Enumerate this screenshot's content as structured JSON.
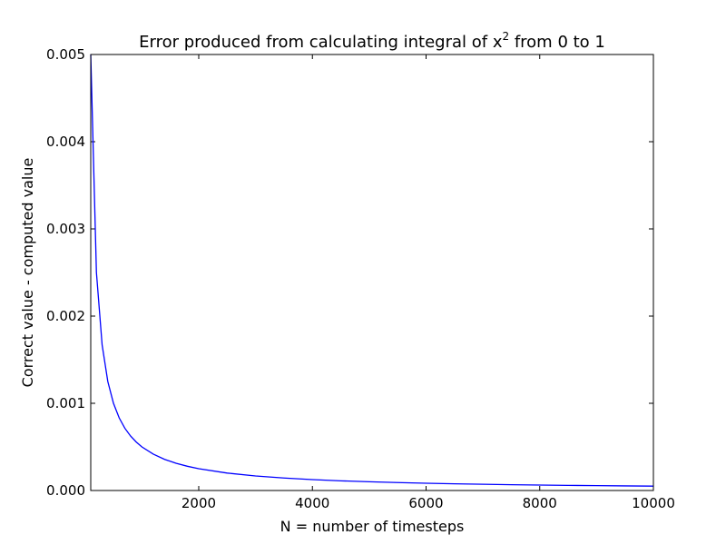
{
  "chart_data": {
    "type": "line",
    "title_text": "Error produced from calculating integral of x",
    "title_superscript": "2",
    "title_suffix": " from 0 to 1",
    "xlabel": "N = number of timesteps",
    "ylabel": "Correct value - computed value",
    "xlim": [
      100,
      10000
    ],
    "ylim": [
      0,
      0.005
    ],
    "x_ticks": [
      2000,
      4000,
      6000,
      8000,
      10000
    ],
    "x_tick_labels": [
      "2000",
      "4000",
      "6000",
      "8000",
      "10000"
    ],
    "y_ticks": [
      0,
      0.001,
      0.002,
      0.003,
      0.004,
      0.005
    ],
    "y_tick_labels": [
      "0.000",
      "0.001",
      "0.002",
      "0.003",
      "0.004",
      "0.005"
    ],
    "grid": false,
    "series": [
      {
        "color": "#0000ff",
        "x": [
          100,
          200,
          300,
          400,
          500,
          600,
          700,
          800,
          900,
          1000,
          1200,
          1400,
          1600,
          1800,
          2000,
          2500,
          3000,
          3500,
          4000,
          4500,
          5000,
          5500,
          6000,
          6500,
          7000,
          7500,
          8000,
          8500,
          9000,
          9500,
          10000
        ],
        "y": [
          0.005,
          0.0025,
          0.00167,
          0.00125,
          0.001,
          0.000833,
          0.000714,
          0.000625,
          0.000556,
          0.0005,
          0.000417,
          0.000357,
          0.000313,
          0.000278,
          0.00025,
          0.0002,
          0.000167,
          0.000143,
          0.000125,
          0.000111,
          0.0001,
          9.09e-05,
          8.33e-05,
          7.69e-05,
          7.14e-05,
          6.67e-05,
          6.25e-05,
          5.88e-05,
          5.56e-05,
          5.26e-05,
          5e-05
        ]
      }
    ]
  }
}
